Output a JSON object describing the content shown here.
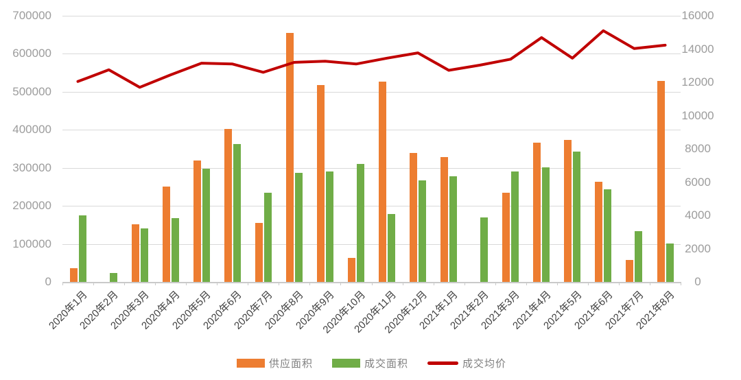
{
  "chart_data": {
    "type": "combo",
    "title": "",
    "categories": [
      "2020年1月",
      "2020年2月",
      "2020年3月",
      "2020年4月",
      "2020年5月",
      "2020年6月",
      "2020年7月",
      "2020年8月",
      "2020年9月",
      "2020年10月",
      "2020年11月",
      "2020年12月",
      "2021年1月",
      "2021年2月",
      "2021年3月",
      "2021年4月",
      "2021年5月",
      "2021年6月",
      "2021年7月",
      "2021年8月"
    ],
    "series": [
      {
        "name": "供应面积",
        "type": "bar",
        "axis": "left",
        "color": "#ED7D31",
        "values": [
          37000,
          0,
          152000,
          250000,
          320000,
          402000,
          155000,
          655000,
          518000,
          63000,
          527000,
          340000,
          328000,
          0,
          235000,
          366000,
          373000,
          263000,
          58000,
          529000
        ]
      },
      {
        "name": "成交面积",
        "type": "bar",
        "axis": "left",
        "color": "#70AD47",
        "values": [
          175000,
          23000,
          140000,
          168000,
          298000,
          362000,
          234000,
          287000,
          291000,
          310000,
          179000,
          267000,
          278000,
          170000,
          291000,
          302000,
          342000,
          244000,
          134000,
          102000
        ]
      },
      {
        "name": "成交均价",
        "type": "line",
        "axis": "right",
        "color": "#C00000",
        "values": [
          12050,
          12750,
          11700,
          12450,
          13150,
          13100,
          12600,
          13200,
          13270,
          13100,
          13450,
          13770,
          12720,
          13030,
          13390,
          14690,
          13450,
          15100,
          14030,
          14230
        ]
      }
    ],
    "left_axis": {
      "min": 0,
      "max": 700000,
      "step": 100000,
      "labels": [
        "700000",
        "600000",
        "500000",
        "400000",
        "300000",
        "200000",
        "100000",
        "0"
      ]
    },
    "right_axis": {
      "min": 0,
      "max": 16000,
      "step": 2000,
      "labels": [
        "16000",
        "14000",
        "12000",
        "10000",
        "8000",
        "6000",
        "4000",
        "2000",
        "0"
      ]
    },
    "legend_position": "bottom",
    "grid": true,
    "grid_color": "#D9D9D9",
    "axis_line_color": "#C9C9C9",
    "y_label_color": "#9C9C9C",
    "x_label_color": "#3F3F3F",
    "legend_text_color": "#7F7F7F",
    "background_color": "#FFFFFF"
  }
}
